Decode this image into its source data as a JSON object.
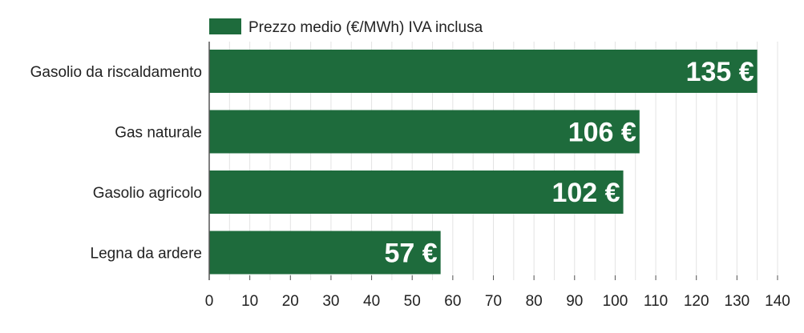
{
  "chart_data": {
    "type": "bar",
    "orientation": "horizontal",
    "categories": [
      "Gasolio da riscaldamento",
      "Gas naturale",
      "Gasolio agricolo",
      "Legna da ardere"
    ],
    "series": [
      {
        "name": "Prezzo medio (€/MWh) IVA inclusa",
        "values": [
          135,
          106,
          102,
          57
        ],
        "color": "#1e6b3c"
      }
    ],
    "value_labels": [
      "135 €",
      "106 €",
      "102 €",
      "57 €"
    ],
    "xlim": [
      0,
      140
    ],
    "ticks": [
      0,
      10,
      20,
      30,
      40,
      50,
      60,
      70,
      80,
      90,
      100,
      110,
      120,
      130,
      140
    ],
    "tick_labels": [
      "0",
      "10",
      "20",
      "30",
      "40",
      "50",
      "60",
      "70",
      "80",
      "90",
      "100",
      "110",
      "120",
      "130",
      "140"
    ],
    "grid": true,
    "legend_position": "top-left",
    "colors": {
      "bar": "#1e6b3c",
      "grid": "#e3e3e3",
      "axis": "#555555",
      "text": "#222222",
      "bar_label": "#ffffff"
    }
  }
}
